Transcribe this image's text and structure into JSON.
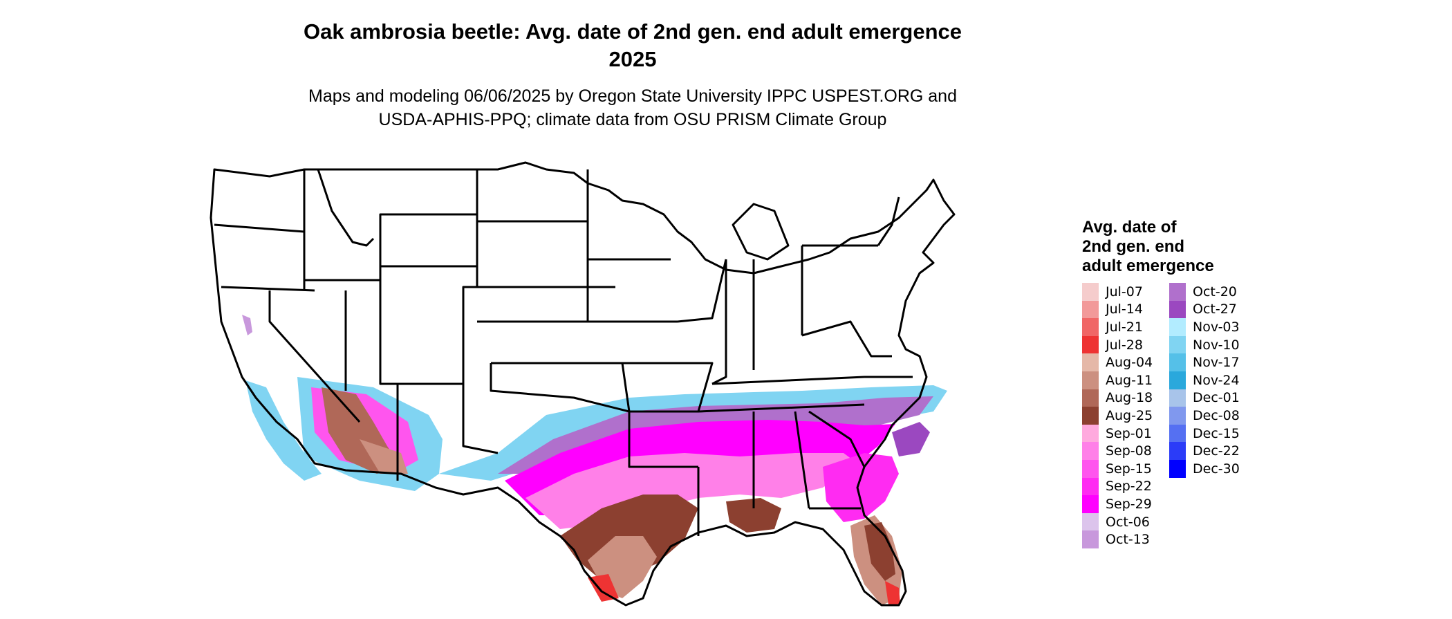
{
  "title": {
    "line1": "Oak ambrosia beetle: Avg. date of 2nd gen. end adult emergence",
    "line2": "2025"
  },
  "subtitle": {
    "line1": "Maps and modeling 06/06/2025 by Oregon State University IPPC USPEST.ORG and",
    "line2": "USDA-APHIS-PPQ; climate data from OSU PRISM Climate Group"
  },
  "legend": {
    "title_lines": [
      "Avg. date of",
      "2nd gen. end",
      "adult emergence"
    ],
    "columns": [
      [
        {
          "label": "Jul-07",
          "color": "#f5cccc"
        },
        {
          "label": "Jul-14",
          "color": "#f29999"
        },
        {
          "label": "Jul-21",
          "color": "#f06666"
        },
        {
          "label": "Jul-28",
          "color": "#ee3333"
        },
        {
          "label": "Aug-04",
          "color": "#e5b8a8"
        },
        {
          "label": "Aug-11",
          "color": "#cc9080"
        },
        {
          "label": "Aug-18",
          "color": "#b06858"
        },
        {
          "label": "Aug-25",
          "color": "#8c4030"
        },
        {
          "label": "Sep-01",
          "color": "#ffaade"
        },
        {
          "label": "Sep-08",
          "color": "#ff80e8"
        },
        {
          "label": "Sep-15",
          "color": "#ff55ee"
        },
        {
          "label": "Sep-22",
          "color": "#ff2bf2"
        },
        {
          "label": "Sep-29",
          "color": "#ff00ff"
        },
        {
          "label": "Oct-06",
          "color": "#dcc4ec"
        },
        {
          "label": "Oct-13",
          "color": "#c898dc"
        }
      ],
      [
        {
          "label": "Oct-20",
          "color": "#b070cc"
        },
        {
          "label": "Oct-27",
          "color": "#9b48c0"
        },
        {
          "label": "Nov-03",
          "color": "#b2ecff"
        },
        {
          "label": "Nov-10",
          "color": "#80d4f2"
        },
        {
          "label": "Nov-17",
          "color": "#55c0e8"
        },
        {
          "label": "Nov-24",
          "color": "#2aa8dc"
        },
        {
          "label": "Dec-01",
          "color": "#a8c4ea"
        },
        {
          "label": "Dec-08",
          "color": "#8098ee"
        },
        {
          "label": "Dec-15",
          "color": "#5570f2"
        },
        {
          "label": "Dec-22",
          "color": "#2b3cf8"
        },
        {
          "label": "Dec-30",
          "color": "#0000ff"
        }
      ]
    ]
  },
  "map": {
    "region": "contiguous-us",
    "state_border_color": "#000000",
    "land_color": "#ffffff"
  }
}
